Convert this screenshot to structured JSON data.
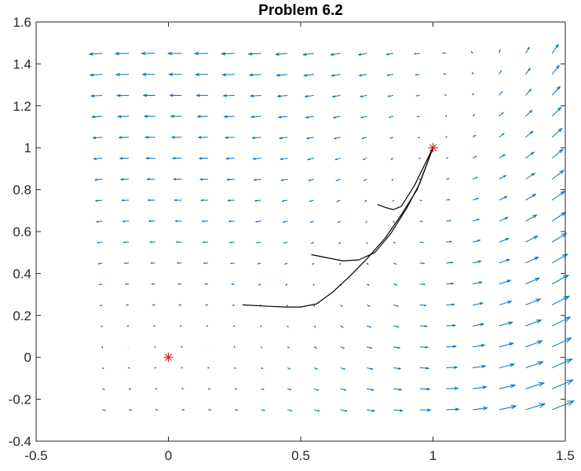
{
  "chart_data": {
    "type": "quiver",
    "title": "Problem 6.2",
    "xlabel": "",
    "ylabel": "",
    "xlim": [
      -0.5,
      1.5
    ],
    "ylim": [
      -0.4,
      1.6
    ],
    "xticks": [
      -0.5,
      0,
      0.5,
      1,
      1.5
    ],
    "xtick_labels": [
      "-0.5",
      "0",
      "0.5",
      "1",
      "1.5"
    ],
    "yticks": [
      -0.4,
      -0.2,
      0,
      0.2,
      0.4,
      0.6,
      0.8,
      1,
      1.2,
      1.4,
      1.6
    ],
    "ytick_labels": [
      "-0.4",
      "-0.2",
      "0",
      "0.2",
      "0.4",
      "0.6",
      "0.8",
      "1",
      "1.2",
      "1.4",
      "1.6"
    ],
    "grid": false,
    "legend": "none",
    "colors": {
      "quiver": "#0072bd",
      "trajectory": "#000000",
      "equilibrium": "#d62728",
      "axes": "#262626"
    },
    "vector_field": {
      "x": [
        -0.25,
        -0.15,
        -0.05,
        0.05,
        0.15,
        0.25,
        0.35,
        0.45,
        0.55,
        0.65,
        0.75,
        0.85,
        0.95,
        1.05,
        1.15,
        1.25,
        1.35,
        1.45
      ],
      "y": [
        -0.25,
        -0.15,
        -0.05,
        0.05,
        0.15,
        0.25,
        0.35,
        0.45,
        0.55,
        0.65,
        0.75,
        0.85,
        0.95,
        1.05,
        1.15,
        1.25,
        1.35,
        1.45
      ]
    },
    "equilibria": [
      {
        "x": 0,
        "y": 0
      },
      {
        "x": 1,
        "y": 1
      }
    ],
    "trajectories": [
      [
        [
          0.28,
          0.25
        ],
        [
          0.36,
          0.245
        ],
        [
          0.44,
          0.24
        ],
        [
          0.5,
          0.24
        ],
        [
          0.56,
          0.255
        ],
        [
          0.62,
          0.31
        ],
        [
          0.68,
          0.38
        ],
        [
          0.75,
          0.47
        ],
        [
          0.82,
          0.57
        ],
        [
          0.88,
          0.68
        ],
        [
          0.94,
          0.8
        ],
        [
          1.0,
          1.0
        ]
      ],
      [
        [
          0.54,
          0.49
        ],
        [
          0.6,
          0.475
        ],
        [
          0.66,
          0.46
        ],
        [
          0.72,
          0.465
        ],
        [
          0.78,
          0.5
        ],
        [
          0.84,
          0.59
        ],
        [
          0.9,
          0.71
        ],
        [
          0.95,
          0.83
        ],
        [
          1.0,
          1.0
        ]
      ],
      [
        [
          0.79,
          0.73
        ],
        [
          0.82,
          0.715
        ],
        [
          0.85,
          0.705
        ],
        [
          0.88,
          0.72
        ],
        [
          0.93,
          0.82
        ],
        [
          1.0,
          1.0
        ]
      ]
    ]
  }
}
